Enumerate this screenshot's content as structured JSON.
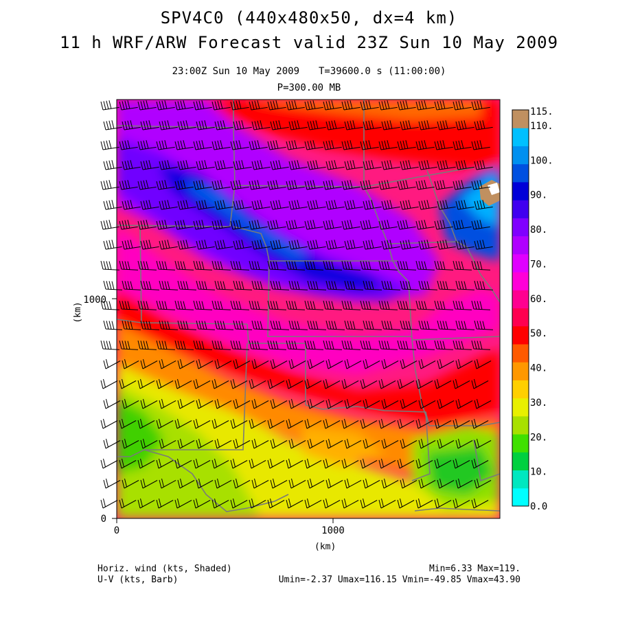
{
  "header": {
    "title_line1": "SPV4C0 (440x480x50, dx=4 km)",
    "title_line2": "11 h WRF/ARW Forecast valid 23Z Sun 10 May 2009",
    "valid_time": "23:00Z Sun 10 May 2009",
    "model_time": "T=39600.0 s (11:00:00)",
    "level": "P=300.00 MB"
  },
  "axes": {
    "x_label": "(km)",
    "y_label": "(km)",
    "x_ticks": [
      "0",
      "1000"
    ],
    "y_ticks": [
      "0",
      "1000"
    ]
  },
  "colorbar": {
    "levels": [
      "0.0",
      "10.",
      "20.",
      "30.",
      "40.",
      "50.",
      "60.",
      "70.",
      "80.",
      "90.",
      "100.",
      "110.",
      "115."
    ],
    "colors": [
      "#00ffff",
      "#00e8c0",
      "#00d040",
      "#40e000",
      "#a8e000",
      "#e8f000",
      "#ffd000",
      "#ff9800",
      "#ff5a00",
      "#ff0000",
      "#ff0050",
      "#ff0090",
      "#ff00d8",
      "#e000ff",
      "#b000ff",
      "#8000ff",
      "#4000f0",
      "#0000d8",
      "#0050e0",
      "#0090f0",
      "#00c0ff",
      "#c09060"
    ]
  },
  "footer": {
    "field1": "Horiz. wind (kts, Shaded)",
    "field2": "U-V (kts, Barb)",
    "minmax": "Min=6.33 Max=119.",
    "stats": "Umin=-2.37 Umax=116.15 Vmin=-49.85 Vmax=43.90"
  }
}
